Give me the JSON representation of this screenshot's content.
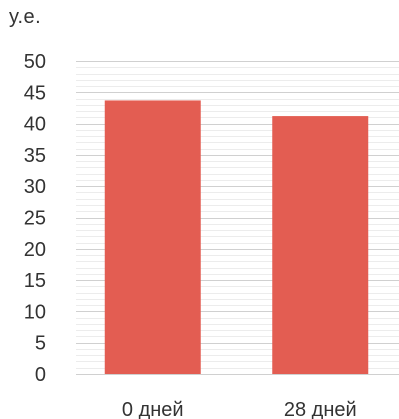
{
  "chart_data": {
    "type": "bar",
    "title": "",
    "ylabel": "у.е.",
    "xlabel": "",
    "categories": [
      "0 дней",
      "28 дней"
    ],
    "values": [
      43.7,
      41.2
    ],
    "ylim": [
      0,
      50
    ],
    "yticks": [
      "0",
      "5",
      "10",
      "15",
      "20",
      "25",
      "30",
      "35",
      "40",
      "45",
      "50"
    ],
    "grid": true,
    "legend": "none",
    "colors": {
      "bar": "#e35d52",
      "grid": "#d9d9d9"
    }
  }
}
